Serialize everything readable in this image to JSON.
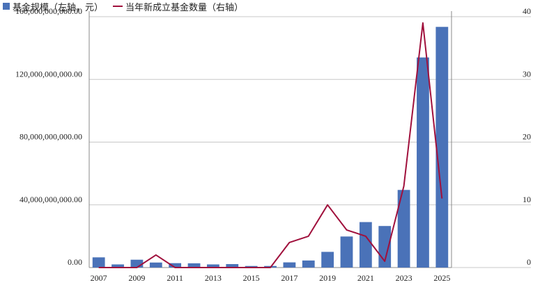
{
  "legend": {
    "bar_label": "基金规模（左轴，元）",
    "line_label": "当年新成立基金数量（右轴）"
  },
  "colors": {
    "bar": "#4a72b8",
    "line": "#a0103c",
    "grid": "#c8c8c8"
  },
  "chart_data": {
    "type": "bar+line",
    "categories": [
      "2007",
      "2008",
      "2009",
      "2010",
      "2011",
      "2012",
      "2013",
      "2014",
      "2015",
      "2016",
      "2017",
      "2018",
      "2019",
      "2020",
      "2021",
      "2022",
      "2023",
      "2024",
      "2025"
    ],
    "x_tick_labels": [
      "2007",
      "2009",
      "2011",
      "2013",
      "2015",
      "2017",
      "2019",
      "2021",
      "2023",
      "2025"
    ],
    "series": [
      {
        "name": "基金规模（左轴，元）",
        "type": "bar",
        "axis": "left",
        "values": [
          6500000000,
          2000000000,
          5000000000,
          3200000000,
          2800000000,
          2700000000,
          2000000000,
          2200000000,
          1000000000,
          1000000000,
          3300000000,
          4500000000,
          10000000000,
          19800000000,
          29000000000,
          26500000000,
          49500000000,
          134000000000,
          153500000000
        ]
      },
      {
        "name": "当年新成立基金数量（右轴）",
        "type": "line",
        "axis": "right",
        "values": [
          0,
          0,
          0,
          2,
          0,
          0,
          0,
          0,
          0,
          0,
          4,
          5,
          10,
          6,
          5,
          1,
          13,
          39,
          11
        ]
      }
    ],
    "y_left": {
      "min": 0,
      "max": 160000000000,
      "ticks": [
        0,
        40000000000,
        80000000000,
        120000000000,
        160000000000
      ],
      "tick_labels": [
        "0.00",
        "40,000,000,000.00",
        "80,000,000,000.00",
        "120,000,000,000.00",
        "160,000,000,000.00"
      ]
    },
    "y_right": {
      "min": 0,
      "max": 40,
      "ticks": [
        0,
        10,
        20,
        30,
        40
      ],
      "tick_labels": [
        "0",
        "10",
        "20",
        "30",
        "40"
      ]
    },
    "grid": true,
    "legend_position": "top-left"
  }
}
